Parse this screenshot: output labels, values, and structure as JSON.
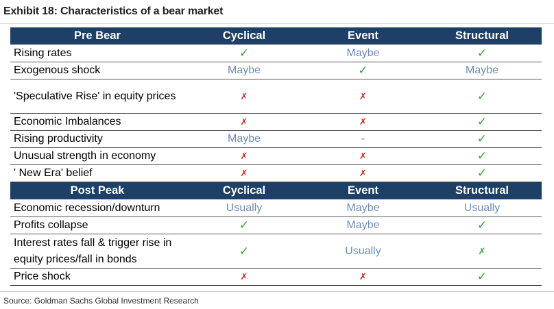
{
  "title": "Exhibit 18: Characteristics of a bear market",
  "source": "Source: Goldman Sachs Global Investment Research",
  "colors": {
    "header_bg": "#1e3f66",
    "check": "#3c9b3c",
    "cross": "#c62828",
    "text_value": "#6b8cb6"
  },
  "sections": [
    {
      "header": [
        "Pre Bear",
        "Cyclical",
        "Event",
        "Structural"
      ],
      "rows": [
        {
          "label": "Rising rates",
          "values": [
            "✓",
            "Maybe",
            "✓"
          ]
        },
        {
          "label": "Exogenous shock",
          "values": [
            "Maybe",
            "✓",
            "Maybe"
          ]
        },
        {
          "label": "'Speculative Rise' in equity prices",
          "values": [
            "✗",
            "✗",
            "✓"
          ]
        },
        {
          "label": "Economic Imbalances",
          "values": [
            "✗",
            "✗",
            "✓"
          ]
        },
        {
          "label": "Rising productivity",
          "values": [
            "Maybe",
            "-",
            "✓"
          ]
        },
        {
          "label": "Unusual strength in economy",
          "values": [
            "✗",
            "✗",
            "✓"
          ]
        },
        {
          "label": "' New Era' belief",
          "values": [
            "✗",
            "✗",
            "✓"
          ]
        }
      ]
    },
    {
      "header": [
        "Post Peak",
        "Cyclical",
        "Event",
        "Structural"
      ],
      "rows": [
        {
          "label": "Economic recession/downturn",
          "values": [
            "Usually",
            "Maybe",
            "Usually"
          ]
        },
        {
          "label": "Profits collapse",
          "values": [
            "✓",
            "Maybe",
            "✓"
          ]
        },
        {
          "label": "Interest rates fall & trigger rise in equity prices/fall in bonds",
          "values": [
            "✓",
            "Usually",
            "✗"
          ]
        },
        {
          "label": "Price shock",
          "values": [
            "✗",
            "✗",
            "✓"
          ]
        }
      ]
    }
  ]
}
